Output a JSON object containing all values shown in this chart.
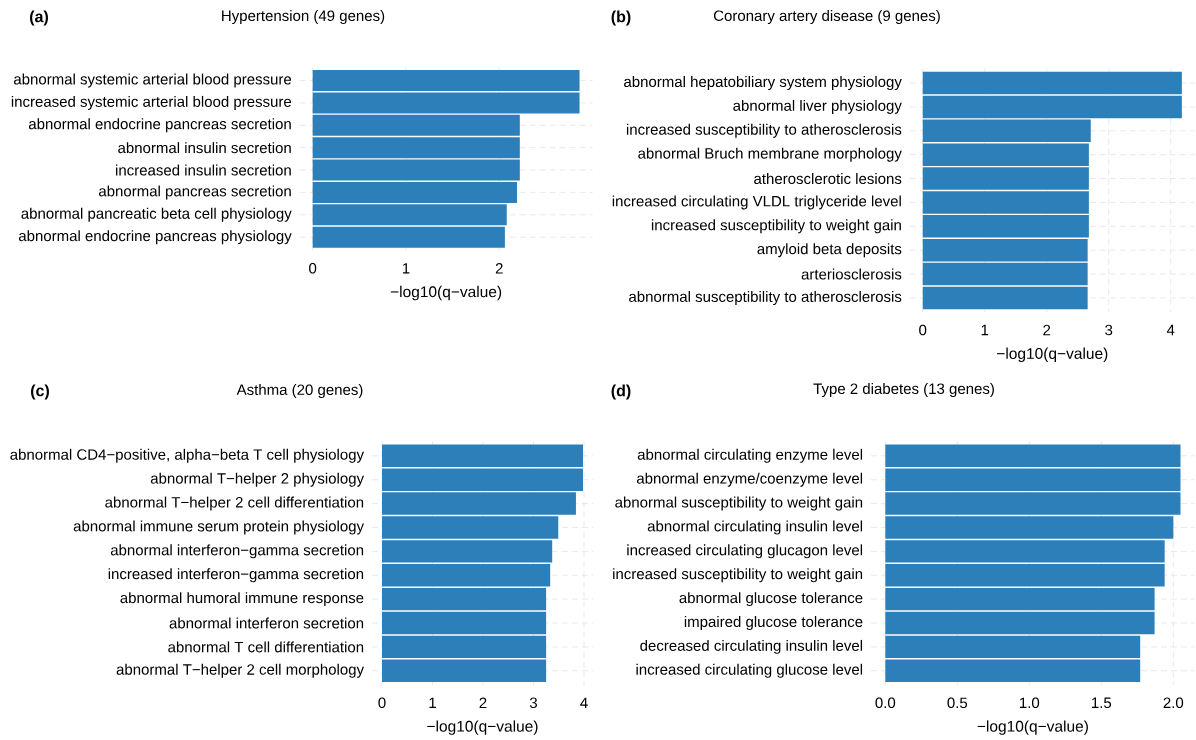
{
  "chart_data": [
    {
      "type": "bar",
      "orientation": "horizontal",
      "title": "Hypertension (49 genes)",
      "xlabel": "−log10(q−value)",
      "annotations": [
        "(a)"
      ],
      "categories": [
        "abnormal systemic arterial blood pressure",
        "increased systemic arterial blood pressure",
        "abnormal endocrine pancreas secretion",
        "abnormal insulin secretion",
        "increased insulin secretion",
        "abnormal pancreas secretion",
        "abnormal pancreatic beta cell physiology",
        "abnormal endocrine pancreas physiology"
      ],
      "values": [
        2.86,
        2.86,
        2.22,
        2.22,
        2.22,
        2.19,
        2.08,
        2.06
      ],
      "color": "#2c7fb8",
      "xlim": [
        -0.14,
        3.0
      ],
      "xticks": [
        0,
        1,
        2
      ],
      "grid": true
    },
    {
      "type": "bar",
      "orientation": "horizontal",
      "title": "Coronary artery disease (9 genes)",
      "xlabel": "−log10(q−value)",
      "annotations": [
        "(b)"
      ],
      "categories": [
        "abnormal hepatobiliary system physiology",
        "abnormal liver physiology",
        "increased susceptibility to atherosclerosis",
        "abnormal Bruch membrane morphology",
        "atherosclerotic lesions",
        "increased circulating VLDL triglyceride level",
        "increased susceptibility to weight gain",
        "amyloid beta deposits",
        "arteriosclerosis",
        "abnormal susceptibility to atherosclerosis"
      ],
      "values": [
        4.18,
        4.18,
        2.71,
        2.68,
        2.68,
        2.68,
        2.68,
        2.66,
        2.66,
        2.66
      ],
      "color": "#2c7fb8",
      "xlim": [
        -0.21,
        4.39
      ],
      "xticks": [
        0,
        1,
        2,
        3,
        4
      ],
      "grid": true
    },
    {
      "type": "bar",
      "orientation": "horizontal",
      "title": "Asthma (20 genes)",
      "xlabel": "−log10(q−value)",
      "annotations": [
        "(c)"
      ],
      "categories": [
        "abnormal CD4−positive, alpha−beta T cell physiology",
        "abnormal T−helper 2 physiology",
        "abnormal T−helper 2 cell differentiation",
        "abnormal immune serum protein physiology",
        "abnormal interferon−gamma secretion",
        "increased interferon−gamma secretion",
        "abnormal humoral immune response",
        "abnormal interferon secretion",
        "abnormal T cell differentiation",
        "abnormal T−helper 2 cell morphology"
      ],
      "values": [
        3.98,
        3.98,
        3.84,
        3.49,
        3.37,
        3.33,
        3.25,
        3.25,
        3.25,
        3.25
      ],
      "color": "#2c7fb8",
      "xlim": [
        -0.2,
        4.18
      ],
      "xticks": [
        0,
        1,
        2,
        3,
        4
      ],
      "grid": true
    },
    {
      "type": "bar",
      "orientation": "horizontal",
      "title": "Type 2 diabetes (13 genes)",
      "xlabel": "−log10(q−value)",
      "annotations": [
        "(d)"
      ],
      "categories": [
        "abnormal circulating enzyme level",
        "abnormal enzyme/coenzyme level",
        "abnormal susceptibility to weight gain",
        "abnormal circulating insulin level",
        "increased circulating glucagon level",
        "increased susceptibility to weight gain",
        "abnormal glucose tolerance",
        "impaired glucose tolerance",
        "decreased circulating insulin level",
        "increased circulating glucose level"
      ],
      "values": [
        2.05,
        2.05,
        2.05,
        2.0,
        1.94,
        1.94,
        1.87,
        1.87,
        1.77,
        1.77
      ],
      "color": "#2c7fb8",
      "xlim": [
        -0.1,
        2.15
      ],
      "xticks": [
        {
          "value": 0,
          "label": "0.0"
        },
        0.5,
        {
          "value": 1,
          "label": "1.0"
        },
        1.5,
        {
          "value": 2,
          "label": "2.0"
        }
      ],
      "grid": true
    }
  ]
}
